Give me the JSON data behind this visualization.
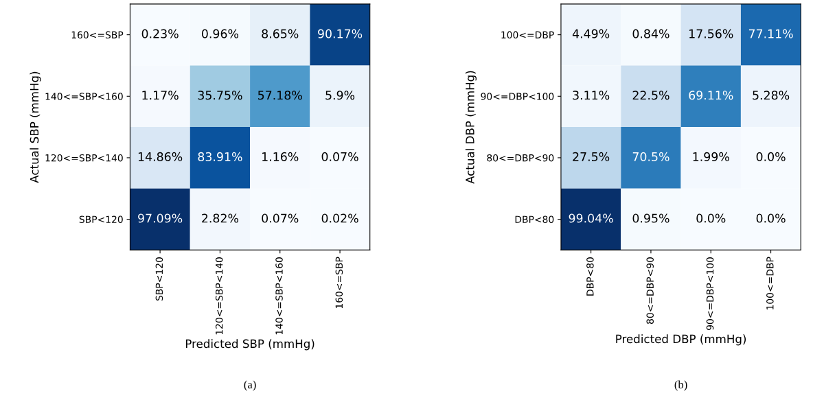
{
  "chart_data": [
    {
      "type": "heatmap",
      "xlabel": "Predicted SBP (mmHg)",
      "ylabel": "Actual SBP (mmHg)",
      "categories": [
        "SBP<120",
        "120<=SBP<140",
        "140<=SBP<160",
        "160<=SBP"
      ],
      "y_categories": [
        "160<=SBP",
        "140<=SBP<160",
        "120<=SBP<140",
        "SBP<120"
      ],
      "cells": [
        [
          0.23,
          0.96,
          8.65,
          90.17
        ],
        [
          1.17,
          35.75,
          57.18,
          5.9
        ],
        [
          14.86,
          83.91,
          1.16,
          0.07
        ],
        [
          97.09,
          2.82,
          0.07,
          0.02
        ]
      ],
      "cell_labels": [
        [
          "0.23%",
          "0.96%",
          "8.65%",
          "90.17%"
        ],
        [
          "1.17%",
          "35.75%",
          "57.18%",
          "5.9%"
        ],
        [
          "14.86%",
          "83.91%",
          "1.16%",
          "0.07%"
        ],
        [
          "97.09%",
          "2.82%",
          "0.07%",
          "0.02%"
        ]
      ],
      "annotations": [
        "(a)"
      ]
    },
    {
      "type": "heatmap",
      "xlabel": "Predicted DBP (mmHg)",
      "ylabel": "Actual DBP (mmHg)",
      "categories": [
        "DBP<80",
        "80<=DBP<90",
        "90<=DBP<100",
        "100<=DBP"
      ],
      "y_categories": [
        "100<=DBP",
        "90<=DBP<100",
        "80<=DBP<90",
        "DBP<80"
      ],
      "cells": [
        [
          4.49,
          0.84,
          17.56,
          77.11
        ],
        [
          3.11,
          22.5,
          69.11,
          5.28
        ],
        [
          27.5,
          70.5,
          1.99,
          0.0
        ],
        [
          99.04,
          0.95,
          0.0,
          0.0
        ]
      ],
      "cell_labels": [
        [
          "4.49%",
          "0.84%",
          "17.56%",
          "77.11%"
        ],
        [
          "3.11%",
          "22.5%",
          "69.11%",
          "5.28%"
        ],
        [
          "27.5%",
          "70.5%",
          "1.99%",
          "0.0%"
        ],
        [
          "99.04%",
          "0.95%",
          "0.0%",
          "0.0%"
        ]
      ],
      "annotations": [
        "(b)"
      ]
    }
  ]
}
